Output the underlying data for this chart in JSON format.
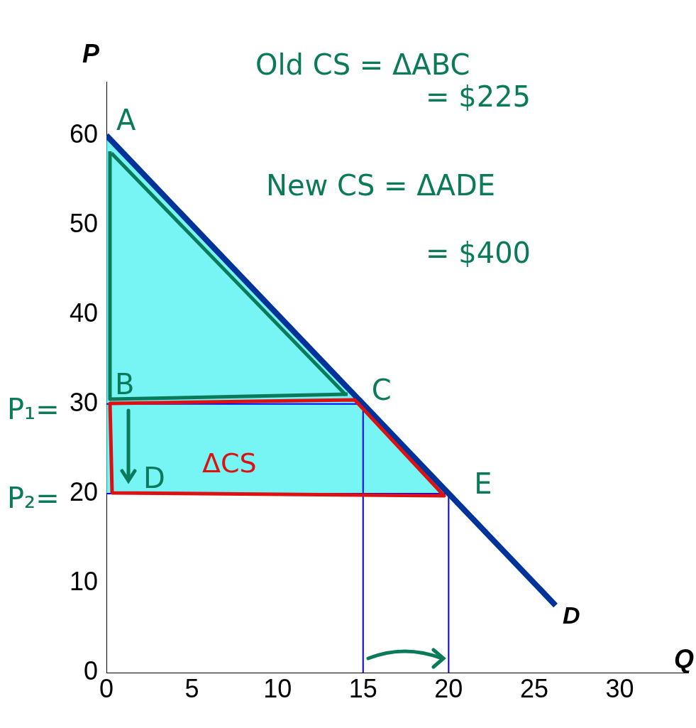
{
  "chart_data": {
    "type": "line",
    "xlabel": "Q",
    "ylabel": "P",
    "xlim": [
      0,
      34
    ],
    "ylim": [
      0,
      66
    ],
    "xticks": [
      0,
      5,
      10,
      15,
      20,
      25,
      30
    ],
    "yticks": [
      0,
      10,
      20,
      30,
      40,
      50,
      60
    ],
    "grid": false,
    "legend": false,
    "marker": "none",
    "series": [
      {
        "type": "area",
        "color": "#33eeee",
        "x": [
          0,
          15,
          20,
          0,
          0
        ],
        "values": [
          60,
          30,
          20,
          20,
          60
        ]
      },
      {
        "type": "line",
        "color": "#0a7a5a",
        "x": [
          0.3,
          14
        ],
        "values": [
          58,
          31
        ]
      },
      {
        "type": "line",
        "color": "#0000ff",
        "x": [
          0,
          15,
          15
        ],
        "values": [
          30,
          30,
          0
        ]
      },
      {
        "type": "line",
        "color": "#0000ff",
        "x": [
          0,
          20,
          20
        ],
        "values": [
          20,
          20,
          0
        ]
      },
      {
        "type": "line",
        "color": "#003399",
        "x": [
          0,
          26.25
        ],
        "values": [
          60,
          7.5
        ]
      }
    ],
    "annotations": [
      {
        "text": "A",
        "x": 0,
        "y": 60
      },
      {
        "text": "B",
        "x": 0,
        "y": 30
      },
      {
        "text": "C",
        "x": 15,
        "y": 30
      },
      {
        "text": "D",
        "x": 0,
        "y": 20
      },
      {
        "text": "E",
        "x": 20,
        "y": 20
      },
      {
        "text": "D",
        "x": 26.25,
        "y": 7.5
      },
      "P₁=",
      "P₂=",
      "Old CS = ΔABC",
      "= $225",
      "New CS = ΔADE",
      "= $400",
      "ΔCS"
    ]
  }
}
